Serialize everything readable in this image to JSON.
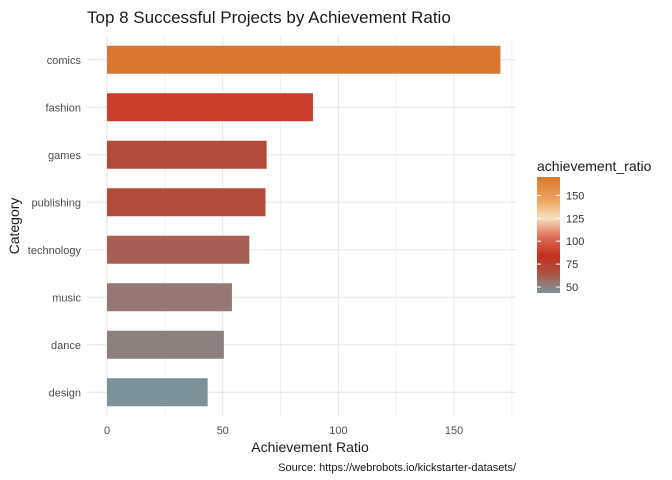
{
  "chart_data": {
    "type": "bar",
    "orientation": "horizontal",
    "title": "Top 8 Successful Projects by Achievement Ratio",
    "xlabel": "Achievement Ratio",
    "ylabel": "Category",
    "caption": "Source: https://webrobots.io/kickstarter-datasets/",
    "categories": [
      "comics",
      "fashion",
      "games",
      "publishing",
      "technology",
      "music",
      "dance",
      "design"
    ],
    "values": [
      170,
      89,
      69,
      68.5,
      61.5,
      54,
      50.5,
      43.5
    ],
    "xlim": [
      0,
      176
    ],
    "xticks": [
      0,
      50,
      100,
      150
    ],
    "grid": true,
    "legend": {
      "title": "achievement_ratio",
      "position": "right",
      "ticks": [
        50,
        75,
        100,
        125,
        150
      ],
      "range": [
        43.5,
        170
      ]
    },
    "color_scale": [
      {
        "value": 43.5,
        "color": "#7d9198"
      },
      {
        "value": 55,
        "color": "#97766f"
      },
      {
        "value": 66,
        "color": "#b04f3e"
      },
      {
        "value": 85,
        "color": "#c5301f"
      },
      {
        "value": 105,
        "color": "#e36f5c"
      },
      {
        "value": 125,
        "color": "#f7e0bd"
      },
      {
        "value": 145,
        "color": "#eda45e"
      },
      {
        "value": 170,
        "color": "#d9772f"
      }
    ]
  }
}
